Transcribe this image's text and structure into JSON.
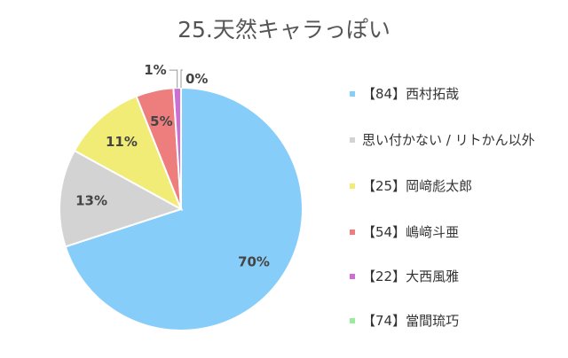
{
  "chart_data": {
    "type": "pie",
    "title": "25.天然キャラっぽい",
    "slices": [
      {
        "label": "【84】西村拓哉",
        "value": 70,
        "display": "70%",
        "color": "#87cdf9"
      },
      {
        "label": "思い付かない / リトかん以外",
        "value": 13,
        "display": "13%",
        "color": "#d3d3d3"
      },
      {
        "label": "【25】岡﨑彪太郎",
        "value": 11,
        "display": "11%",
        "color": "#f0ec76"
      },
      {
        "label": "【54】嶋﨑斗亜",
        "value": 5,
        "display": "5%",
        "color": "#ee7e7e"
      },
      {
        "label": "【22】大西風雅",
        "value": 1,
        "display": "1%",
        "color": "#cc6ed3"
      },
      {
        "label": "【74】當間琉巧",
        "value": 0,
        "display": "0%",
        "color": "#97ed99"
      }
    ],
    "legend_position": "right"
  }
}
